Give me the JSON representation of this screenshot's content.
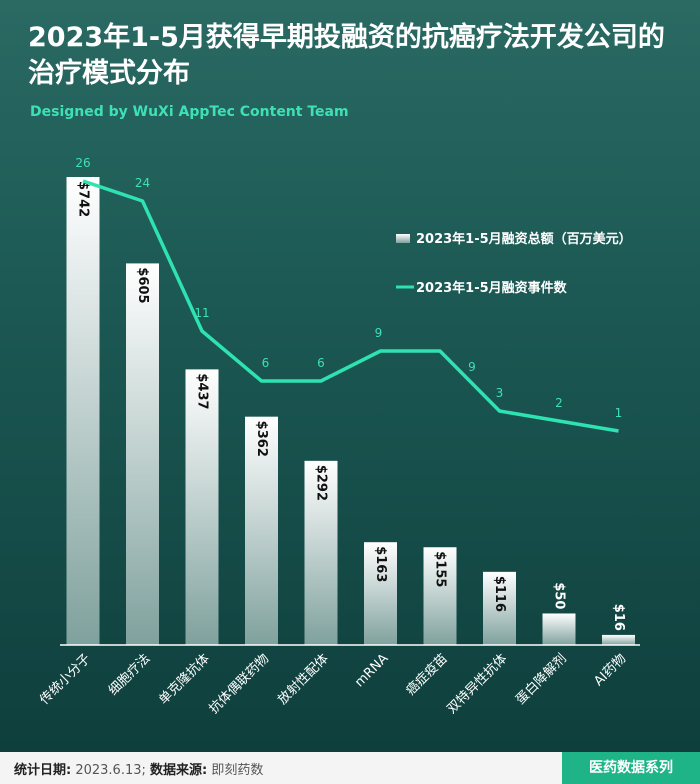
{
  "title": "2023年1-5月获得早期投融资的抗癌疗法开发公司的治疗模式分布",
  "credit": "Designed by WuXi AppTec Content Team",
  "footer": {
    "date_label": "统计日期:",
    "date_value": "2023.6.13;",
    "source_label": "数据来源:",
    "source_value": "即刻药数",
    "series_tag": "医药数据系列"
  },
  "colors": {
    "bar_top": "#ffffff",
    "bar_bottom": "#7fa19d",
    "line": "#2ee3b1",
    "count_label": "#3fe0b4"
  },
  "chart_data": {
    "type": "bar",
    "categories": [
      "传统小分子",
      "细胞疗法",
      "单克隆抗体",
      "抗体偶联药物",
      "放射性配体",
      "mRNA",
      "癌症疫苗",
      "双特异性抗体",
      "蛋白降解剂",
      "AI药物"
    ],
    "series": [
      {
        "name": "2023年1-5月融资总额（百万美元）",
        "type": "bar",
        "values": [
          742,
          605,
          437,
          362,
          292,
          163,
          155,
          116,
          50,
          16
        ],
        "labels": [
          "$742",
          "$605",
          "$437",
          "$362",
          "$292",
          "$163",
          "$155",
          "$116",
          "$50",
          "$16"
        ]
      },
      {
        "name": "2023年1-5月融资事件数",
        "type": "line",
        "values": [
          26,
          24,
          11,
          6,
          6,
          9,
          9,
          3,
          2,
          1
        ],
        "labels": [
          "26",
          "24",
          "11",
          "6",
          "6",
          "9",
          "9",
          "3",
          "2",
          "1"
        ]
      }
    ],
    "legend_position": "top-right",
    "grid": false
  }
}
